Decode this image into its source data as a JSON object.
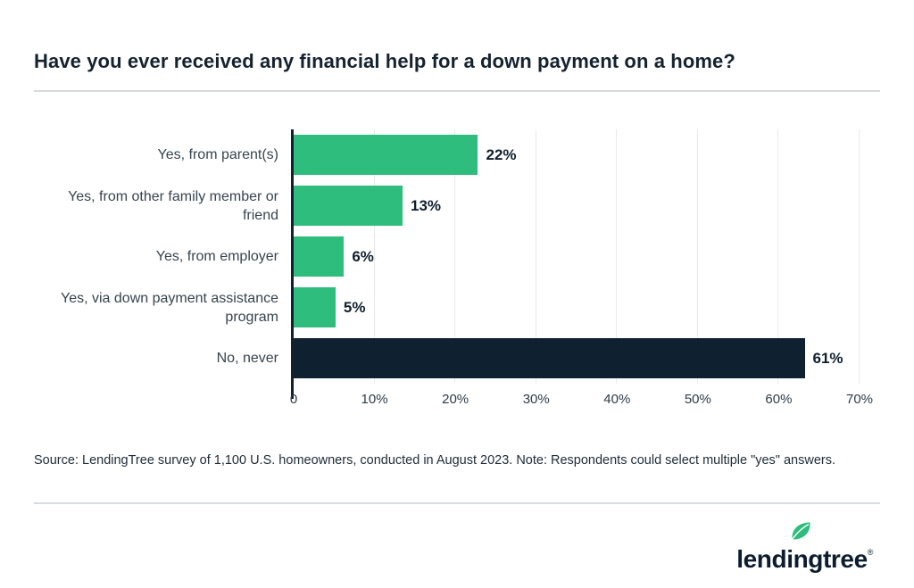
{
  "page": {
    "title": "Have you ever received any financial help for a down payment on a home?",
    "source_note": "Source: LendingTree survey of 1,100 U.S. homeowners, conducted in August 2023. Note: Respondents could select multiple \"yes\" answers.",
    "logo": {
      "wordmark": "lendingtree",
      "registered_mark": "®"
    }
  },
  "colors": {
    "green": "#2ebd7d",
    "navy": "#0f2030",
    "grid": "#e8eaec",
    "divider": "#d8dbde"
  },
  "chart_data": {
    "type": "bar",
    "orientation": "horizontal",
    "title": "Have you ever received any financial help for a down payment on a home?",
    "categories": [
      "Yes, from parent(s)",
      "Yes, from other family member or friend",
      "Yes, from employer",
      "Yes, via down payment assistance program",
      "No, never"
    ],
    "values": [
      22,
      13,
      6,
      5,
      61
    ],
    "value_labels": [
      "22%",
      "13%",
      "6%",
      "5%",
      "61%"
    ],
    "bar_colors": [
      "green",
      "green",
      "green",
      "green",
      "navy"
    ],
    "xlim": [
      0,
      70
    ],
    "x_ticks": [
      "0",
      "10%",
      "20%",
      "30%",
      "40%",
      "50%",
      "60%",
      "70%"
    ],
    "grid": true,
    "legend": "none"
  }
}
